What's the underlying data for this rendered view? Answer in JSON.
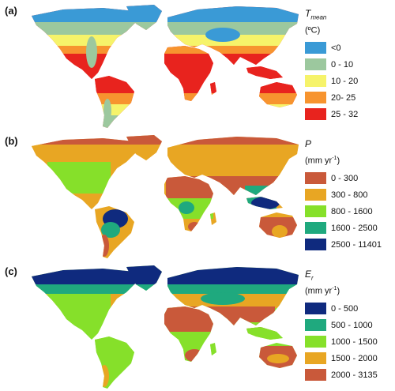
{
  "panels": [
    {
      "id": "a",
      "label": "(a)",
      "title_var": "T",
      "title_sub": "mean",
      "unit_main": "(ºC)",
      "unit_sup": "",
      "unit_end": "",
      "legend": [
        {
          "label": "<0",
          "color": "#3a9ad6"
        },
        {
          "label": "0 - 10",
          "color": "#9cc89e"
        },
        {
          "label": "10 - 20",
          "color": "#f6f36a"
        },
        {
          "label": "20- 25",
          "color": "#f7942f"
        },
        {
          "label": "25 - 32",
          "color": "#e8231e"
        }
      ]
    },
    {
      "id": "b",
      "label": "(b)",
      "title_var": "P",
      "title_sub": "",
      "unit_main": "(mm yr",
      "unit_sup": "-1",
      "unit_end": ")",
      "legend": [
        {
          "label": "0 - 300",
          "color": "#c9593a"
        },
        {
          "label": "300 - 800",
          "color": "#e8a623"
        },
        {
          "label": "800 - 1600",
          "color": "#86e02a"
        },
        {
          "label": "1600 - 2500",
          "color": "#1fa97e"
        },
        {
          "label": "2500 - 11401",
          "color": "#0f2a7e"
        }
      ]
    },
    {
      "id": "c",
      "label": "(c)",
      "title_var": "E",
      "title_sub": "r",
      "unit_main": "(mm yr",
      "unit_sup": "-1",
      "unit_end": ")",
      "legend": [
        {
          "label": "0 - 500",
          "color": "#0f2a7e"
        },
        {
          "label": "500 - 1000",
          "color": "#1fa97e"
        },
        {
          "label": "1000 - 1500",
          "color": "#86e02a"
        },
        {
          "label": "1500 - 2000",
          "color": "#e8a623"
        },
        {
          "label": "2000 - 3135",
          "color": "#c9593a"
        }
      ]
    }
  ]
}
